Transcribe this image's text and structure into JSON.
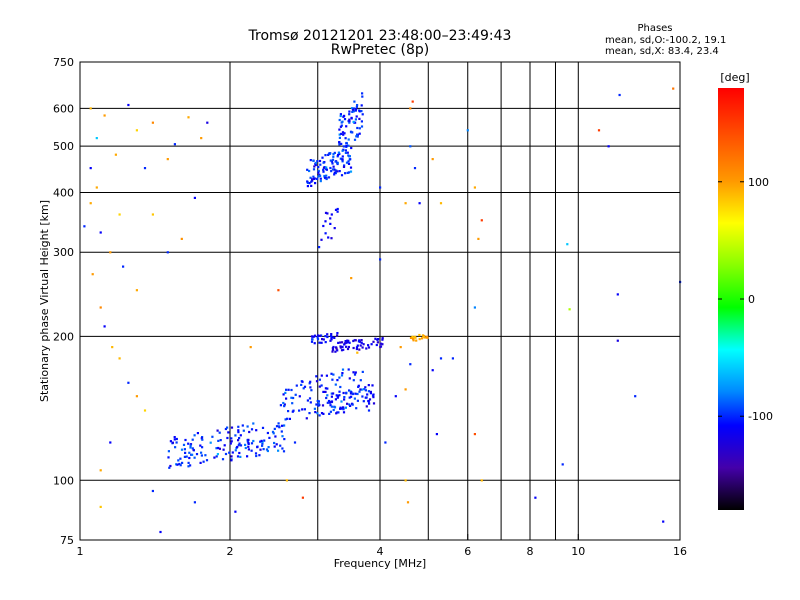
{
  "chart_data": {
    "type": "scatter",
    "title": "Tromsø 20121201 23:48:00–23:49:43",
    "subtitle": "RwPretec (8p)",
    "xlabel": "Frequency [MHz]",
    "ylabel": "Stationary phase Virtual Height [km]",
    "x_scale": "log",
    "y_scale": "log",
    "xlim": [
      1,
      16
    ],
    "ylim": [
      75,
      750
    ],
    "x_ticks": [
      1,
      2,
      4,
      6,
      8,
      10,
      16
    ],
    "y_ticks": [
      75,
      100,
      200,
      300,
      400,
      500,
      600,
      750
    ],
    "grid": true,
    "phases_box": {
      "heading": "Phases",
      "line_o": "mean, sd,O:-100.2, 19.1",
      "line_x": "mean, sd,X:  83.4, 23.4"
    },
    "colorbar": {
      "label": "[deg]",
      "range": [
        -180,
        180
      ],
      "ticks": [
        100,
        0,
        -100
      ]
    },
    "clusters": [
      {
        "f_range": [
          1.5,
          2.6
        ],
        "h_range": [
          105,
          135
        ],
        "n": 160,
        "phase_mean": -100,
        "phase_sd": 20
      },
      {
        "f_range": [
          2.5,
          3.7
        ],
        "h_range": [
          130,
          175
        ],
        "n": 110,
        "phase_mean": -100,
        "phase_sd": 20
      },
      {
        "f_range": [
          3.1,
          3.9
        ],
        "h_range": [
          135,
          160
        ],
        "n": 60,
        "phase_mean": -110,
        "phase_sd": 15
      },
      {
        "f_range": [
          3.2,
          4.1
        ],
        "h_range": [
          185,
          200
        ],
        "n": 60,
        "phase_mean": -120,
        "phase_sd": 15
      },
      {
        "f_range": [
          2.9,
          3.3
        ],
        "h_range": [
          192,
          205
        ],
        "n": 30,
        "phase_mean": -110,
        "phase_sd": 15
      },
      {
        "f_range": [
          2.85,
          3.5
        ],
        "h_range": [
          410,
          500
        ],
        "n": 110,
        "phase_mean": -100,
        "phase_sd": 20
      },
      {
        "f_range": [
          3.3,
          3.7
        ],
        "h_range": [
          480,
          650
        ],
        "n": 80,
        "phase_mean": -100,
        "phase_sd": 20
      },
      {
        "f_range": [
          3.0,
          3.3
        ],
        "h_range": [
          305,
          380
        ],
        "n": 15,
        "phase_mean": -110,
        "phase_sd": 15
      },
      {
        "f_range": [
          4.6,
          5.0
        ],
        "h_range": [
          195,
          203
        ],
        "n": 20,
        "phase_mean": 95,
        "phase_sd": 10
      }
    ],
    "scattered_points": [
      [
        1.05,
        600,
        90
      ],
      [
        1.08,
        520,
        -60
      ],
      [
        1.12,
        580,
        100
      ],
      [
        1.18,
        480,
        95
      ],
      [
        1.25,
        610,
        -110
      ],
      [
        1.3,
        540,
        80
      ],
      [
        1.35,
        450,
        -100
      ],
      [
        1.4,
        560,
        110
      ],
      [
        1.05,
        380,
        95
      ],
      [
        1.1,
        330,
        -110
      ],
      [
        1.2,
        360,
        80
      ],
      [
        1.15,
        300,
        100
      ],
      [
        1.22,
        280,
        -100
      ],
      [
        1.3,
        250,
        95
      ],
      [
        1.1,
        230,
        110
      ],
      [
        1.4,
        360,
        85
      ],
      [
        1.5,
        300,
        -100
      ],
      [
        1.6,
        320,
        105
      ],
      [
        1.7,
        390,
        -110
      ],
      [
        1.75,
        520,
        100
      ],
      [
        1.8,
        560,
        -120
      ],
      [
        1.2,
        180,
        90
      ],
      [
        1.25,
        160,
        -100
      ],
      [
        1.3,
        150,
        100
      ],
      [
        1.35,
        140,
        80
      ],
      [
        1.15,
        120,
        -110
      ],
      [
        1.1,
        105,
        95
      ],
      [
        1.1,
        88,
        85
      ],
      [
        1.4,
        95,
        -100
      ],
      [
        1.45,
        78,
        -110
      ],
      [
        1.7,
        90,
        -100
      ],
      [
        2.05,
        86,
        -110
      ],
      [
        2.8,
        92,
        150
      ],
      [
        4.5,
        100,
        90
      ],
      [
        4.55,
        90,
        100
      ],
      [
        4.6,
        600,
        110
      ],
      [
        4.65,
        620,
        150
      ],
      [
        4.6,
        500,
        -90
      ],
      [
        4.7,
        450,
        -100
      ],
      [
        4.5,
        380,
        95
      ],
      [
        4.8,
        380,
        -110
      ],
      [
        5.1,
        470,
        100
      ],
      [
        5.3,
        380,
        90
      ],
      [
        6.0,
        540,
        -80
      ],
      [
        6.2,
        410,
        95
      ],
      [
        6.3,
        320,
        100
      ],
      [
        6.4,
        350,
        150
      ],
      [
        6.2,
        230,
        -80
      ],
      [
        6.2,
        125,
        140
      ],
      [
        6.4,
        100,
        90
      ],
      [
        8.2,
        92,
        -110
      ],
      [
        9.3,
        108,
        -100
      ],
      [
        9.5,
        312,
        -60
      ],
      [
        9.6,
        228,
        40
      ],
      [
        11.0,
        540,
        150
      ],
      [
        11.5,
        500,
        -110
      ],
      [
        12.1,
        640,
        -100
      ],
      [
        12.0,
        245,
        -110
      ],
      [
        12.0,
        196,
        -120
      ],
      [
        13.0,
        150,
        -100
      ],
      [
        14.8,
        82,
        -110
      ],
      [
        15.5,
        660,
        120
      ],
      [
        16.0,
        260,
        -100
      ],
      [
        2.5,
        250,
        140
      ],
      [
        3.5,
        265,
        100
      ],
      [
        4.0,
        290,
        -100
      ],
      [
        4.4,
        190,
        100
      ],
      [
        4.6,
        175,
        -100
      ],
      [
        5.1,
        170,
        -110
      ],
      [
        5.3,
        180,
        -100
      ],
      [
        5.6,
        180,
        -100
      ],
      [
        4.1,
        120,
        -100
      ],
      [
        5.2,
        125,
        -110
      ],
      [
        3.8,
        140,
        -100
      ],
      [
        4.3,
        150,
        -110
      ],
      [
        4.5,
        155,
        100
      ],
      [
        2.2,
        190,
        100
      ],
      [
        3.6,
        185,
        90
      ],
      [
        1.05,
        450,
        -110
      ],
      [
        1.08,
        410,
        95
      ],
      [
        1.02,
        340,
        -100
      ],
      [
        1.06,
        270,
        100
      ],
      [
        1.12,
        210,
        -110
      ],
      [
        1.16,
        190,
        90
      ],
      [
        1.5,
        470,
        100
      ],
      [
        1.55,
        505,
        -100
      ],
      [
        1.65,
        575,
        95
      ],
      [
        2.7,
        120,
        -100
      ],
      [
        2.6,
        100,
        90
      ],
      [
        3.2,
        360,
        -110
      ],
      [
        4.0,
        410,
        -100
      ]
    ]
  }
}
